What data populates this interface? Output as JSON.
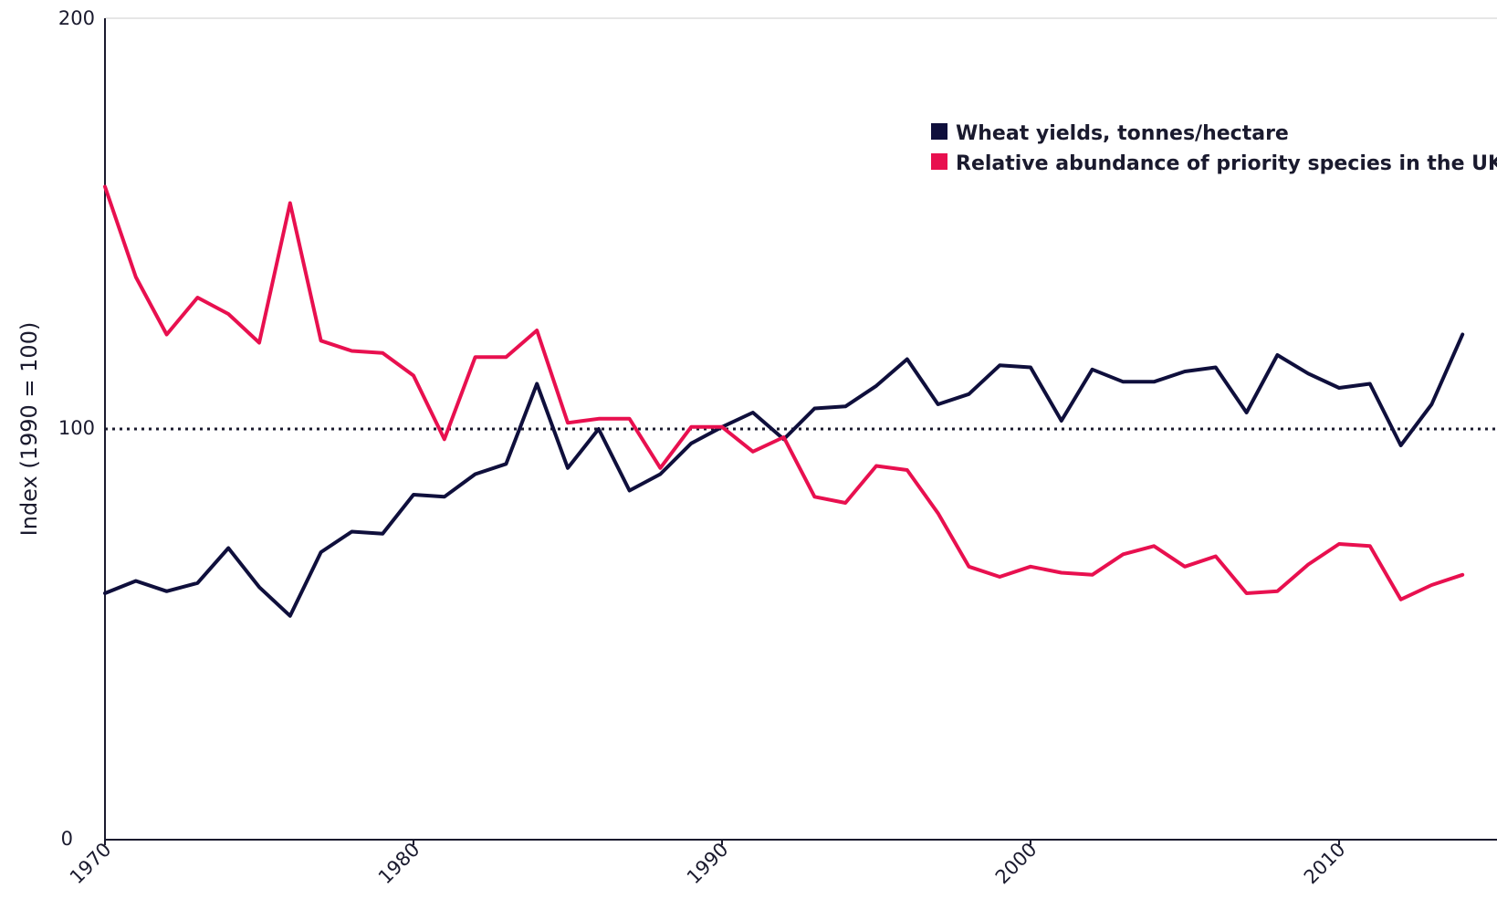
{
  "chart_data": {
    "type": "line",
    "title": "",
    "xlabel": "",
    "ylabel": "Index (1990 = 100)",
    "xlim": [
      1970,
      2015
    ],
    "ylim": [
      0,
      200
    ],
    "x_ticks": [
      "1970",
      "1980",
      "1990",
      "2000",
      "2010"
    ],
    "y_ticks": [
      "0",
      "100",
      "200"
    ],
    "reference_line": {
      "y": 100,
      "style": "dotted"
    },
    "legend_position": "top-right",
    "x": [
      1970,
      1971,
      1972,
      1973,
      1974,
      1975,
      1976,
      1977,
      1978,
      1979,
      1980,
      1981,
      1982,
      1983,
      1984,
      1985,
      1986,
      1987,
      1988,
      1989,
      1990,
      1991,
      1992,
      1993,
      1994,
      1995,
      1996,
      1997,
      1998,
      1999,
      2000,
      2001,
      2002,
      2003,
      2004,
      2005,
      2006,
      2007,
      2008,
      2009,
      2010,
      2011,
      2012,
      2013,
      2014
    ],
    "series": [
      {
        "name": "Wheat yields, tonnes/hectare",
        "color": "#0f0f3c",
        "values": [
          60,
          63,
          60.5,
          62.5,
          71,
          61.5,
          54.5,
          70,
          75,
          74.5,
          84,
          83.5,
          89,
          91.5,
          111,
          90.5,
          100,
          85,
          89,
          96.5,
          100.5,
          104,
          97.5,
          105,
          105.5,
          110.5,
          117,
          106,
          108.5,
          115.5,
          115,
          102,
          114.5,
          111.5,
          111.5,
          114,
          115,
          104,
          118,
          113.5,
          110,
          111,
          96,
          106,
          123
        ]
      },
      {
        "name": "Relative abundance of priority species in the UK",
        "color": "#e8104f",
        "values": [
          159,
          137,
          123,
          132,
          128,
          121,
          155,
          121.5,
          119,
          118.5,
          113,
          97.5,
          117.5,
          117.5,
          124,
          101.5,
          102.5,
          102.5,
          90.5,
          100.5,
          100.5,
          94.5,
          98,
          83.5,
          82,
          91,
          90,
          79.5,
          66.5,
          64,
          66.5,
          65,
          64.5,
          69.5,
          71.5,
          66.5,
          69,
          60,
          60.5,
          67,
          72,
          71.5,
          58.5,
          62,
          64.5
        ]
      }
    ]
  }
}
